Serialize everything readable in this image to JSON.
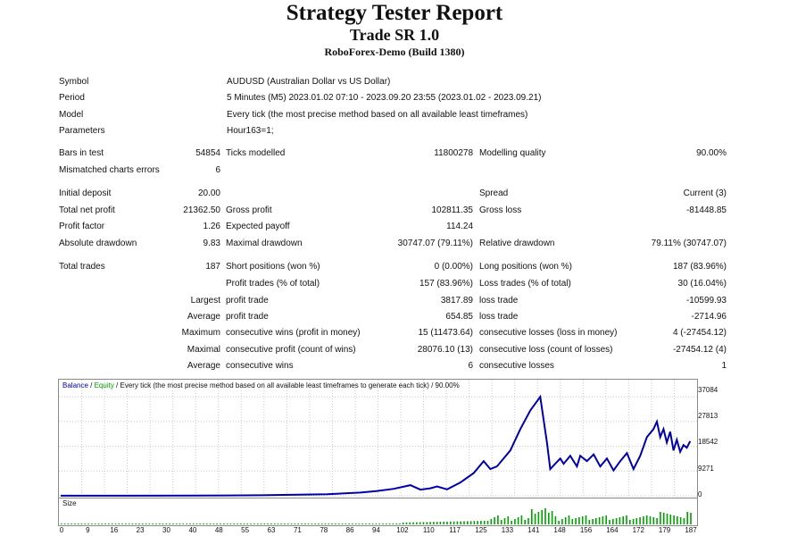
{
  "header": {
    "title": "Strategy Tester Report",
    "subtitle": "Trade SR 1.0",
    "server": "RoboForex-Demo (Build 1380)"
  },
  "info": {
    "symbol_label": "Symbol",
    "symbol_value": "AUDUSD (Australian Dollar vs US Dollar)",
    "period_label": "Period",
    "period_value": "5 Minutes (M5) 2023.01.02 07:10 - 2023.09.20 23:55 (2023.01.02 - 2023.09.21)",
    "model_label": "Model",
    "model_value": "Every tick (the most precise method based on all available least timeframes)",
    "parameters_label": "Parameters",
    "parameters_value": "Hour163=1;"
  },
  "stats": {
    "bars_label": "Bars in test",
    "bars_value": "54854",
    "ticks_label": "Ticks modelled",
    "ticks_value": "11800278",
    "quality_label": "Modelling quality",
    "quality_value": "90.00%",
    "mismatch_label": "Mismatched charts errors",
    "mismatch_value": "6",
    "deposit_label": "Initial deposit",
    "deposit_value": "20.00",
    "spread_label": "Spread",
    "spread_value": "Current (3)",
    "netprofit_label": "Total net profit",
    "netprofit_value": "21362.50",
    "grossprofit_label": "Gross profit",
    "grossprofit_value": "102811.35",
    "grossloss_label": "Gross loss",
    "grossloss_value": "-81448.85",
    "pf_label": "Profit factor",
    "pf_value": "1.26",
    "payoff_label": "Expected payoff",
    "payoff_value": "114.24",
    "absdd_label": "Absolute drawdown",
    "absdd_value": "9.83",
    "maxdd_label": "Maximal drawdown",
    "maxdd_value": "30747.07 (79.11%)",
    "reldd_label": "Relative drawdown",
    "reldd_value": "79.11% (30747.07)",
    "trades_label": "Total trades",
    "trades_value": "187",
    "short_label": "Short positions (won %)",
    "short_value": "0 (0.00%)",
    "long_label": "Long positions (won %)",
    "long_value": "187 (83.96%)",
    "ptrades_label": "Profit trades (% of total)",
    "ptrades_value": "157 (83.96%)",
    "ltrades_label": "Loss trades (% of total)",
    "ltrades_value": "30 (16.04%)",
    "largest_label": "Largest",
    "largest_pt_label": "profit trade",
    "largest_pt_value": "3817.89",
    "largest_lt_label": "loss trade",
    "largest_lt_value": "-10599.93",
    "average_label": "Average",
    "average_pt_label": "profit trade",
    "average_pt_value": "654.85",
    "average_lt_label": "loss trade",
    "average_lt_value": "-2714.96",
    "maximum_label": "Maximum",
    "max_cw_label": "consecutive wins (profit in money)",
    "max_cw_value": "15 (11473.64)",
    "max_cl_label": "consecutive losses (loss in money)",
    "max_cl_value": "4 (-27454.12)",
    "maximal_label": "Maximal",
    "mxl_cp_label": "consecutive profit (count of wins)",
    "mxl_cp_value": "28076.10 (13)",
    "mxl_cl_label": "consecutive loss (count of losses)",
    "mxl_cl_value": "-27454.12 (4)",
    "average2_label": "Average",
    "avg_cw_label": "consecutive wins",
    "avg_cw_value": "6",
    "avg_cl_label": "consecutive losses",
    "avg_cl_value": "1"
  },
  "chart_data": {
    "type": "line",
    "legend_balance": "Balance",
    "legend_sep1": " / ",
    "legend_equity": "Equity",
    "legend_rest": " / Every tick (the most precise method based on all available least timeframes to generate each tick) / 90.00%",
    "balance_color": "#0000aa",
    "equity_color": "#00a000",
    "y_ticks": [
      "37084",
      "27813",
      "18542",
      "9271",
      "0"
    ],
    "ylim": [
      0,
      39500
    ],
    "xlim": [
      0,
      190
    ],
    "x_ticks": [
      "0",
      "9",
      "16",
      "23",
      "30",
      "40",
      "48",
      "55",
      "63",
      "71",
      "78",
      "86",
      "94",
      "102",
      "110",
      "117",
      "125",
      "133",
      "141",
      "148",
      "156",
      "164",
      "172",
      "179",
      "187"
    ],
    "series": [
      {
        "x": [
          0,
          20,
          40,
          60,
          80,
          90,
          95,
          100,
          105,
          108,
          111,
          113,
          116,
          120,
          124,
          127,
          129,
          131,
          135,
          138,
          141,
          144,
          146,
          147,
          150,
          151,
          153,
          155,
          156,
          158,
          160,
          162,
          164,
          166,
          168,
          170,
          172,
          174,
          176,
          178,
          179,
          180,
          181,
          182,
          183,
          184,
          185,
          186,
          187,
          188,
          189
        ],
        "values": [
          20,
          30,
          80,
          200,
          600,
          1200,
          1800,
          2600,
          4000,
          2300,
          2800,
          3500,
          2400,
          5000,
          8500,
          13000,
          10000,
          11000,
          17000,
          25000,
          32000,
          37084,
          20000,
          10000,
          14000,
          12000,
          15000,
          11000,
          15000,
          13000,
          15500,
          11000,
          14000,
          9500,
          13000,
          16000,
          10000,
          15000,
          22000,
          25000,
          27813,
          22000,
          25000,
          20000,
          24000,
          17000,
          21000,
          16500,
          19000,
          18000,
          20500
        ]
      }
    ],
    "size_label": "Size"
  }
}
